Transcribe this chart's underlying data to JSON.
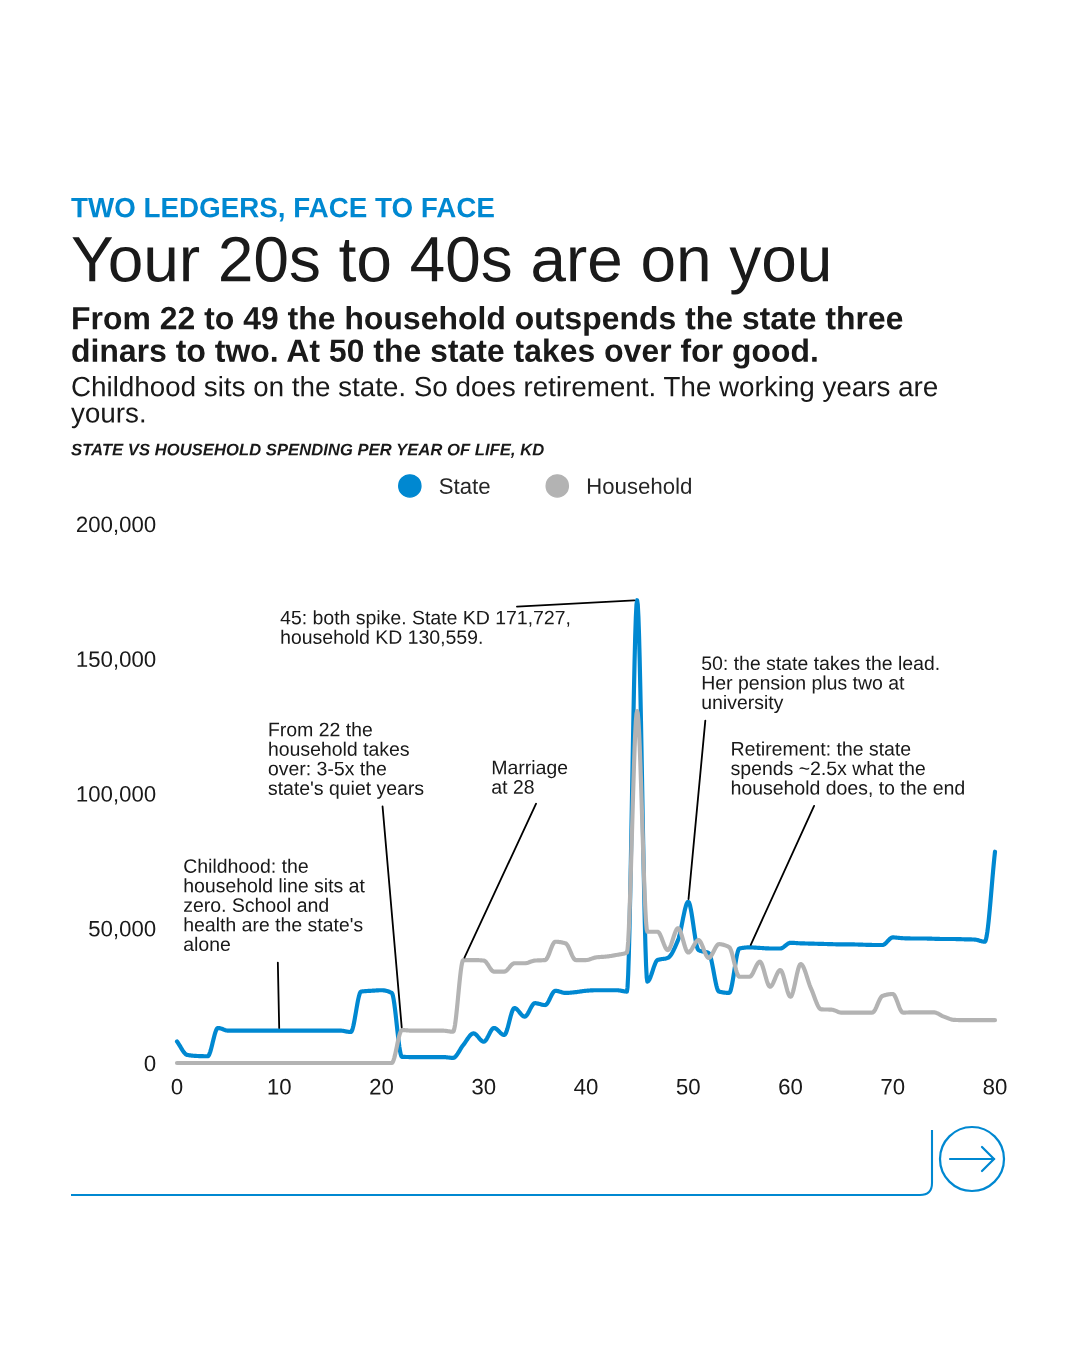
{
  "chart_data": {
    "type": "line",
    "title": "Your 20s to 40s are on you",
    "subtitle": "From 22 to 49 the household outspends the state three dinars to two. At 50 the state takes over for good.",
    "ylabel": "STATE VS HOUSEHOLD SPENDING PER YEAR OF LIFE, KD",
    "annotations": [
      "TWO LEDGERS, FACE TO FACE",
      "Childhood sits on the state. So does retirement. The working years are yours.",
      {
        "text": "Childhood: the household line sits at zero. School and health are the state's alone",
        "x": 10,
        "y": 12000
      },
      {
        "text": "From 22 the household takes over: 3-5x the state's quiet years",
        "x": 22,
        "y": 12200
      },
      {
        "text": "Marriage at 28",
        "x": 28,
        "y": 38200
      },
      {
        "text": "45: both spike. State KD 171,727, household KD 130,559.",
        "x": 45,
        "y": 171727
      },
      {
        "text": "50: the state takes the lead. Her pension plus two at university",
        "x": 50,
        "y": 59800
      },
      {
        "text": "Retirement: the state spends ~2.5x what the household does, to the end",
        "x": 56,
        "y": 42900
      }
    ],
    "x": [
      0,
      1,
      2,
      3,
      4,
      5,
      6,
      7,
      8,
      9,
      10,
      11,
      12,
      13,
      14,
      15,
      16,
      17,
      18,
      19,
      20,
      21,
      22,
      23,
      24,
      25,
      26,
      27,
      28,
      29,
      30,
      31,
      32,
      33,
      34,
      35,
      36,
      37,
      38,
      39,
      40,
      41,
      42,
      43,
      44,
      45,
      46,
      47,
      48,
      49,
      50,
      51,
      52,
      53,
      54,
      55,
      56,
      57,
      58,
      59,
      60,
      61,
      62,
      63,
      64,
      65,
      66,
      67,
      68,
      69,
      70,
      71,
      72,
      73,
      74,
      75,
      76,
      77,
      78,
      79,
      80
    ],
    "series": [
      {
        "name": "State",
        "color": "#0088d1",
        "values": [
          8000,
          3000,
          2600,
          2500,
          13000,
          12000,
          12000,
          12000,
          12000,
          12000,
          12000,
          12000,
          12000,
          12000,
          12000,
          12000,
          12000,
          11500,
          26500,
          26800,
          27000,
          26000,
          2300,
          2200,
          2200,
          2200,
          2200,
          1900,
          6700,
          11000,
          7900,
          13000,
          10400,
          20400,
          17200,
          22200,
          21500,
          26800,
          26000,
          26300,
          26800,
          27000,
          27000,
          27000,
          26500,
          171727,
          30200,
          38200,
          39000,
          45600,
          59800,
          41900,
          40800,
          26500,
          26000,
          42500,
          42900,
          42700,
          42500,
          42500,
          44600,
          44400,
          44300,
          44200,
          44100,
          44000,
          44000,
          43900,
          43800,
          43800,
          46600,
          46300,
          46200,
          46200,
          46100,
          46000,
          46000,
          45900,
          45800,
          45000,
          78400
        ]
      },
      {
        "name": "Household",
        "color": "#b3b3b3",
        "values": [
          0,
          0,
          0,
          0,
          0,
          0,
          0,
          0,
          0,
          0,
          0,
          0,
          0,
          0,
          0,
          0,
          0,
          0,
          0,
          0,
          0,
          0,
          12200,
          12000,
          12000,
          12000,
          12000,
          11600,
          38200,
          38200,
          38000,
          33900,
          33900,
          37000,
          37000,
          38000,
          38200,
          45000,
          44400,
          38200,
          38200,
          39200,
          39500,
          40100,
          41000,
          130559,
          48700,
          48700,
          41900,
          50000,
          41000,
          45600,
          39000,
          44100,
          43000,
          32000,
          32000,
          37600,
          28300,
          34500,
          24600,
          36700,
          27700,
          19900,
          19800,
          18700,
          18700,
          18700,
          18700,
          24900,
          25600,
          18700,
          18800,
          18800,
          18800,
          17200,
          16000,
          15900,
          15900,
          15900,
          15900
        ]
      }
    ],
    "xlim": [
      0,
      80
    ],
    "ylim": [
      0,
      200000
    ],
    "xticks": [
      0,
      10,
      20,
      30,
      40,
      50,
      60,
      70,
      80
    ],
    "yticks": [
      0,
      {
        "value": 50000,
        "label": "50,000"
      },
      {
        "value": 100000,
        "label": "100,000"
      },
      {
        "value": 150000,
        "label": "150,000"
      },
      {
        "value": 200000,
        "label": "200,000"
      }
    ],
    "grid": false,
    "legend": "top",
    "line_style": "solid"
  }
}
